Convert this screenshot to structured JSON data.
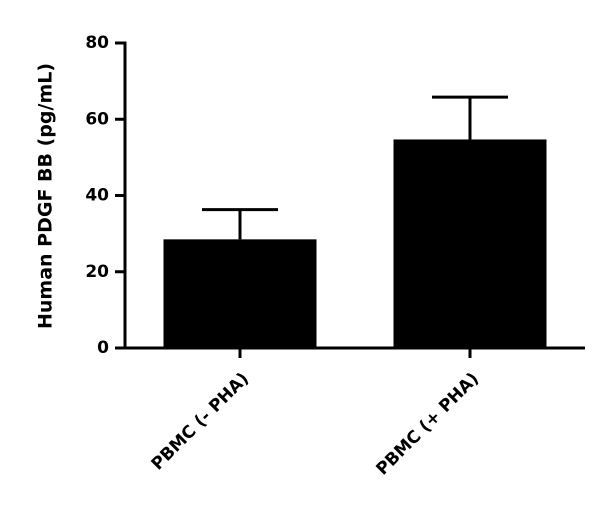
{
  "chart_data": {
    "type": "bar",
    "y_label": "Human PDGF BB (pg/mL)",
    "categories": [
      "PBMC (- PHA)",
      "PBMC (+ PHA)"
    ],
    "values": [
      28.5,
      54.7
    ],
    "errors": [
      7.8,
      11.1
    ],
    "color": "#000000",
    "ylim": [
      0,
      80
    ],
    "yticks": [
      0,
      20,
      40,
      60,
      80
    ]
  }
}
